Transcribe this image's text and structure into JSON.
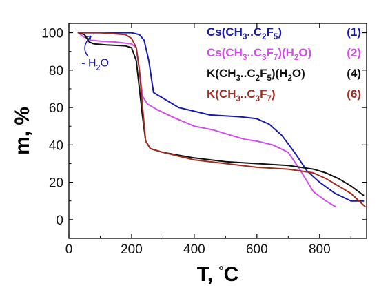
{
  "chart_data": {
    "type": "line",
    "xlabel": "T, °C",
    "ylabel": "m, %",
    "xlim": [
      0,
      950
    ],
    "ylim": [
      -10,
      105
    ],
    "xticks": [
      0,
      200,
      400,
      600,
      800
    ],
    "yticks": [
      0,
      20,
      40,
      60,
      80,
      100
    ],
    "grid": false,
    "legend_position": "top-right",
    "series": [
      {
        "name": "Cs(CH3..C2F5)",
        "label": "(1)",
        "color": "#1a1aaa",
        "x": [
          30,
          100,
          200,
          225,
          240,
          255,
          270,
          350,
          450,
          550,
          600,
          640,
          680,
          720,
          760,
          800,
          850,
          900,
          940
        ],
        "y": [
          100,
          100,
          100,
          99,
          96,
          85,
          68,
          60,
          56,
          55,
          54,
          51,
          45,
          36,
          26,
          20,
          14,
          10,
          10
        ]
      },
      {
        "name": "Cs(CH3..C3F7)(H2O)",
        "label": "(2)",
        "color": "#d24ee8",
        "x": [
          30,
          45,
          70,
          100,
          150,
          200,
          215,
          225,
          235,
          250,
          280,
          330,
          400,
          460,
          520,
          560,
          600,
          650,
          700,
          740,
          780,
          820,
          850
        ],
        "y": [
          100,
          98,
          96,
          95.5,
          95,
          94,
          92,
          80,
          66,
          62,
          59,
          55,
          50,
          48,
          45,
          43,
          42,
          40,
          36,
          26,
          15,
          10,
          7
        ]
      },
      {
        "name": "K(CH3..C2F5)(H2O)",
        "label": "(4)",
        "color": "#111111",
        "x": [
          30,
          50,
          65,
          80,
          120,
          180,
          200,
          215,
          225,
          235,
          245,
          260,
          300,
          400,
          500,
          600,
          700,
          780,
          820,
          860,
          900,
          940
        ],
        "y": [
          100,
          99,
          95,
          94,
          93.5,
          93,
          92,
          85,
          70,
          55,
          42,
          38,
          36,
          33,
          31,
          30,
          29,
          27,
          25,
          22,
          18,
          13
        ]
      },
      {
        "name": "K(CH3..C3F7)",
        "label": "(6)",
        "color": "#a02d22",
        "x": [
          30,
          100,
          180,
          200,
          215,
          225,
          235,
          245,
          260,
          300,
          400,
          500,
          600,
          700,
          740,
          780,
          820,
          860,
          900,
          945
        ],
        "y": [
          100,
          100,
          99,
          97,
          92,
          80,
          60,
          42,
          38,
          36,
          32,
          30,
          28,
          27,
          26,
          25,
          22,
          18,
          14,
          7
        ]
      }
    ],
    "annotations": [
      {
        "text": "- H2O",
        "x": 40,
        "y": 82
      }
    ]
  }
}
